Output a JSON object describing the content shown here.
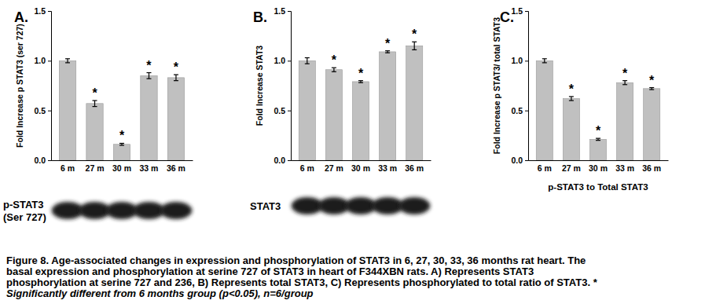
{
  "chart_data": [
    {
      "type": "bar",
      "panel_label": "A.",
      "y_label": "Fold Increase p STAT3 (ser 727)",
      "categories": [
        "6 m",
        "27 m",
        "30 m",
        "33 m",
        "36 m"
      ],
      "values": [
        1.0,
        0.57,
        0.16,
        0.85,
        0.83
      ],
      "errors": [
        0.02,
        0.03,
        0.01,
        0.03,
        0.03
      ],
      "significance": [
        null,
        "*",
        "*",
        "*",
        "*"
      ],
      "color": "#c0c0c0",
      "ylim": [
        0,
        1.5
      ],
      "yticks": [
        {
          "value": 0,
          "label": "0.0"
        },
        {
          "value": 0.5,
          "label": "0.5"
        },
        {
          "value": 1,
          "label": "1.0"
        },
        {
          "value": 1.5,
          "label": "1.5"
        }
      ],
      "grid": false,
      "blot_label": [
        "p-STAT3",
        "(Ser 727)"
      ]
    },
    {
      "type": "bar",
      "panel_label": "B.",
      "y_label": "Fold Increase STAT3",
      "categories": [
        "6 m",
        "27 m",
        "30 m",
        "33 m",
        "36 m"
      ],
      "values": [
        1.0,
        0.91,
        0.79,
        1.09,
        1.15
      ],
      "errors": [
        0.03,
        0.02,
        0.01,
        0.01,
        0.04
      ],
      "significance": [
        null,
        "*",
        "*",
        "*",
        "*"
      ],
      "color": "#c0c0c0",
      "ylim": [
        0,
        1.5
      ],
      "yticks": [
        {
          "value": 0,
          "label": "0.0"
        },
        {
          "value": 0.5,
          "label": "0.5"
        },
        {
          "value": 1,
          "label": "1.0"
        },
        {
          "value": 1.5,
          "label": "1.5"
        }
      ],
      "grid": false,
      "blot_label": [
        "STAT3"
      ]
    },
    {
      "type": "bar",
      "panel_label": "C.",
      "y_label": "Fold Increase p STAT3/ total STAT3",
      "x_label": "p-STAT3 to Total STAT3",
      "categories": [
        "6 m",
        "27 m",
        "30 m",
        "33 m",
        "36 m"
      ],
      "values": [
        1.0,
        0.62,
        0.21,
        0.78,
        0.72
      ],
      "errors": [
        0.02,
        0.02,
        0.01,
        0.02,
        0.01
      ],
      "significance": [
        null,
        "*",
        "*",
        "*",
        "*"
      ],
      "color": "#c0c0c0",
      "ylim": [
        0,
        1.5
      ],
      "yticks": [
        {
          "value": 0,
          "label": "0.0"
        },
        {
          "value": 0.5,
          "label": "0.5"
        },
        {
          "value": 1,
          "label": "1.0"
        },
        {
          "value": 1.5,
          "label": "1.5"
        }
      ],
      "grid": false
    }
  ],
  "caption": {
    "label": "Figure 8.",
    "lines": [
      " Age-associated changes in expression and phosphorylation of STAT3 in 6, 27, 30, 33, 36 months rat heart. The",
      "basal expression and phosphorylation at serine 727 of STAT3 in heart of F344XBN rats. A) Represents STAT3",
      "phosphorylation at serine 727 and 236, B) Represents total STAT3, C) Represents phosphorylated to total ratio of STAT3. *",
      "Significantly different from 6 months group (p<0.05), n=6/group"
    ]
  }
}
